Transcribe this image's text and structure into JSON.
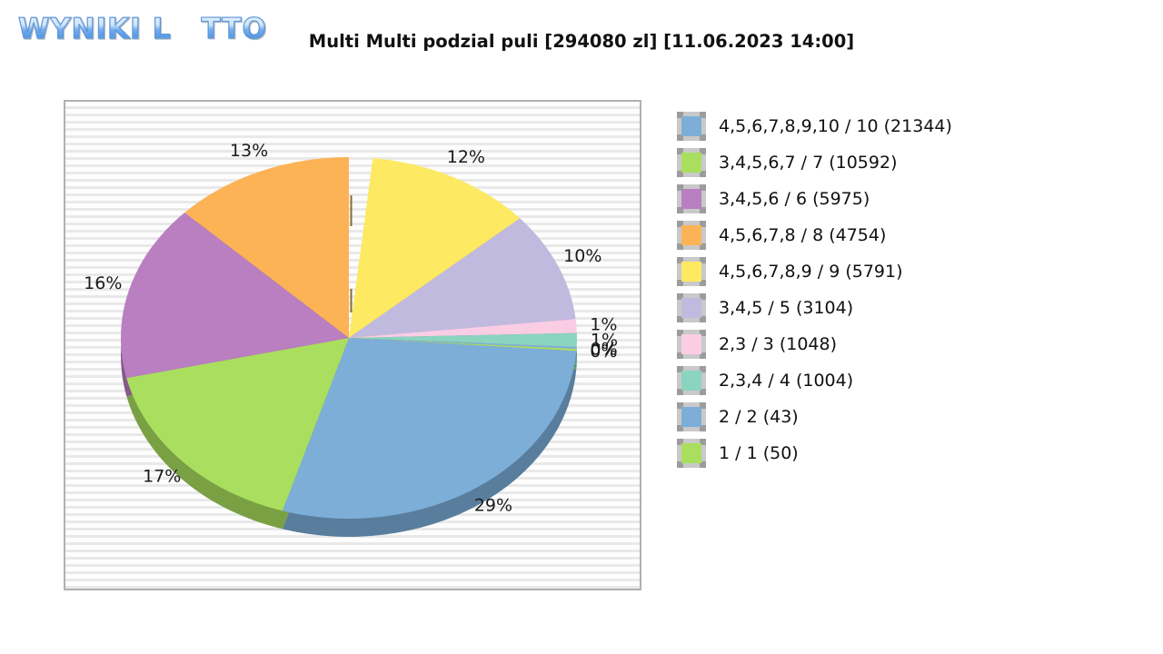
{
  "header": {
    "logo": {
      "part1": "WYNIKI",
      "part2": "L",
      "part3": "TTO",
      "star_icon_color": "#e8cb5e"
    }
  },
  "chart_data": {
    "type": "pie",
    "title": "Multi Multi podzial puli [294080 zl] [11.06.2023 14:00]",
    "game": "Multi Multi",
    "pool": "294080 zl",
    "draw_datetime": "11.06.2023 14:00",
    "effect": "3d",
    "legend_position": "right",
    "slices": [
      {
        "legend_label": "4,5,6,7,8,9,10 / 10 (21344)",
        "matches": "4,5,6,7,8,9,10",
        "division": "10",
        "winners": 21344,
        "percent": 29,
        "color": "#7caed8"
      },
      {
        "legend_label": "3,4,5,6,7 / 7 (10592)",
        "matches": "3,4,5,6,7",
        "division": "7",
        "winners": 10592,
        "percent": 17,
        "color": "#aade5f"
      },
      {
        "legend_label": "3,4,5,6 / 6 (5975)",
        "matches": "3,4,5,6",
        "division": "6",
        "winners": 5975,
        "percent": 16,
        "color": "#b97fc0"
      },
      {
        "legend_label": "4,5,6,7,8 / 8 (4754)",
        "matches": "4,5,6,7,8",
        "division": "8",
        "winners": 4754,
        "percent": 13,
        "color": "#fcb356"
      },
      {
        "legend_label": "4,5,6,7,8,9 / 9 (5791)",
        "matches": "4,5,6,7,8,9",
        "division": "9",
        "winners": 5791,
        "percent": 12,
        "color": "#fde962"
      },
      {
        "legend_label": "3,4,5 / 5 (3104)",
        "matches": "3,4,5",
        "division": "5",
        "winners": 3104,
        "percent": 10,
        "color": "#c1badf"
      },
      {
        "legend_label": "2,3 / 3 (1048)",
        "matches": "2,3",
        "division": "3",
        "winners": 1048,
        "percent": 1,
        "color": "#fbcde5"
      },
      {
        "legend_label": "2,3,4 / 4 (1004)",
        "matches": "2,3,4",
        "division": "4",
        "winners": 1004,
        "percent": 1,
        "color": "#8ad4c0"
      },
      {
        "legend_label": "2 / 2 (43)",
        "matches": "2",
        "division": "2",
        "winners": 43,
        "percent": 0,
        "color": "#7caed8"
      },
      {
        "legend_label": "1 / 1 (50)",
        "matches": "1",
        "division": "1",
        "winners": 50,
        "percent": 0,
        "color": "#aade5f"
      }
    ]
  }
}
